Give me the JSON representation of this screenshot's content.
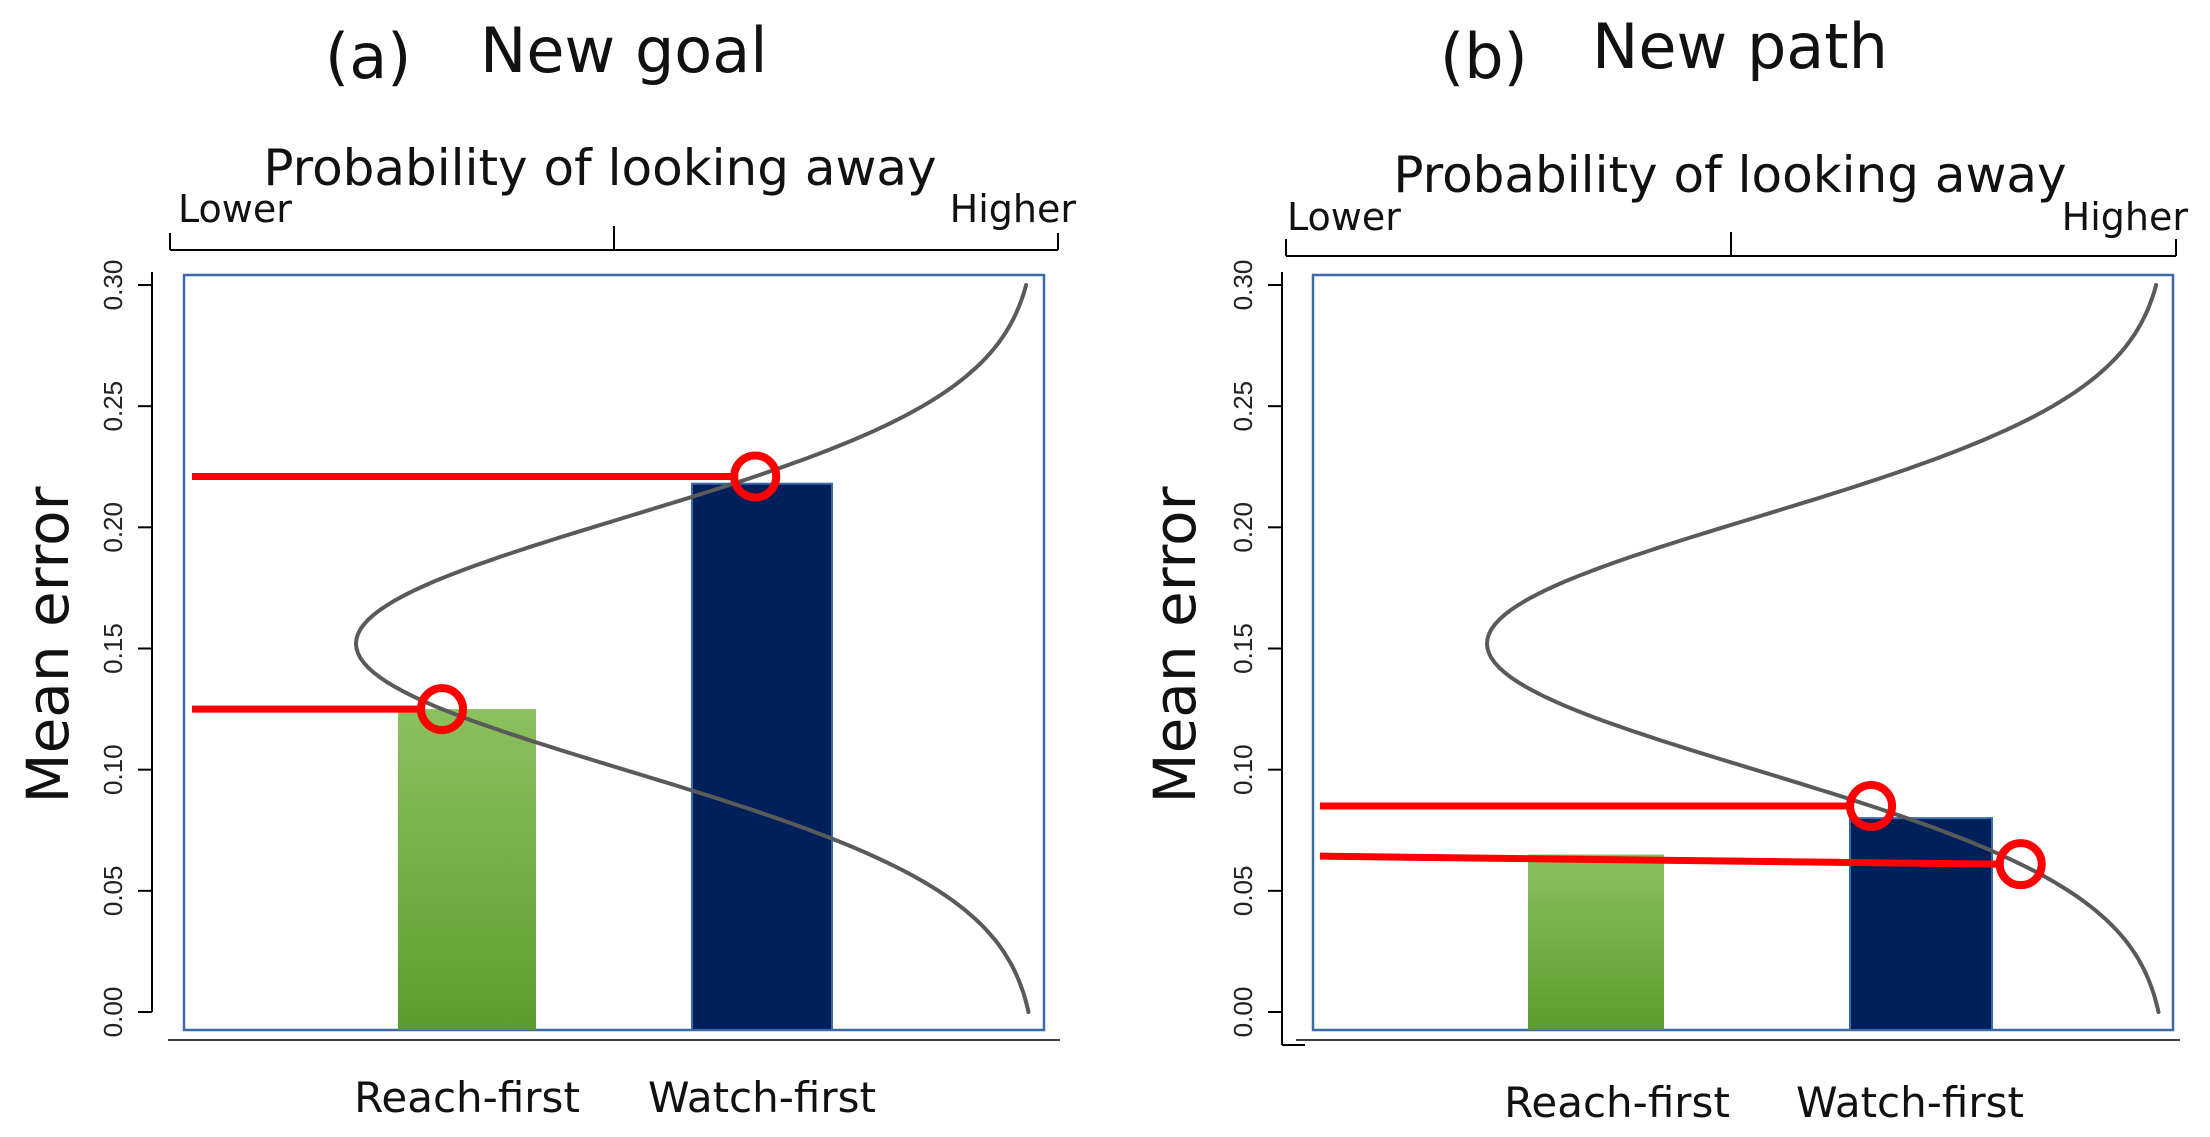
{
  "colors": {
    "reach_bar_top": "#8bc15e",
    "reach_bar_bottom": "#5c9c2f",
    "watch_bar": "#00205b",
    "frame": "#3b6aa8",
    "curve": "#5a5a5a",
    "highlight": "#ff0000"
  },
  "chart_data": [
    {
      "type": "bar",
      "panel_label": "(a)",
      "title": "New goal",
      "top_axis_title": "Probability of looking away",
      "top_axis_low_label": "Lower",
      "top_axis_high_label": "Higher",
      "ylabel": "Mean error",
      "ylim": [
        0,
        0.3
      ],
      "yticks": [
        "0.00",
        "0.05",
        "0.10",
        "0.15",
        "0.20",
        "0.25",
        "0.30"
      ],
      "categories": [
        "Reach-first",
        "Watch-first"
      ],
      "values": [
        0.125,
        0.218
      ],
      "curve_trough": 0.152,
      "markers": [
        {
          "category": "Reach-first",
          "y": 0.125
        },
        {
          "category": "Watch-first",
          "y": 0.221
        }
      ],
      "grid": false,
      "legend": "none"
    },
    {
      "type": "bar",
      "panel_label": "(b)",
      "title": "New path",
      "top_axis_title": "Probability of looking away",
      "top_axis_low_label": "Lower",
      "top_axis_high_label": "Higher",
      "ylabel": "Mean error",
      "ylim": [
        0,
        0.3
      ],
      "yticks": [
        "0.00",
        "0.05",
        "0.10",
        "0.15",
        "0.20",
        "0.25",
        "0.30"
      ],
      "categories": [
        "Reach-first",
        "Watch-first"
      ],
      "values": [
        0.065,
        0.08
      ],
      "curve_trough": 0.152,
      "markers": [
        {
          "category": "Watch-first",
          "y": 0.085
        },
        {
          "category": "Watch-first",
          "y": 0.061,
          "beyond_bar": true
        }
      ],
      "grid": false,
      "legend": "none"
    }
  ]
}
